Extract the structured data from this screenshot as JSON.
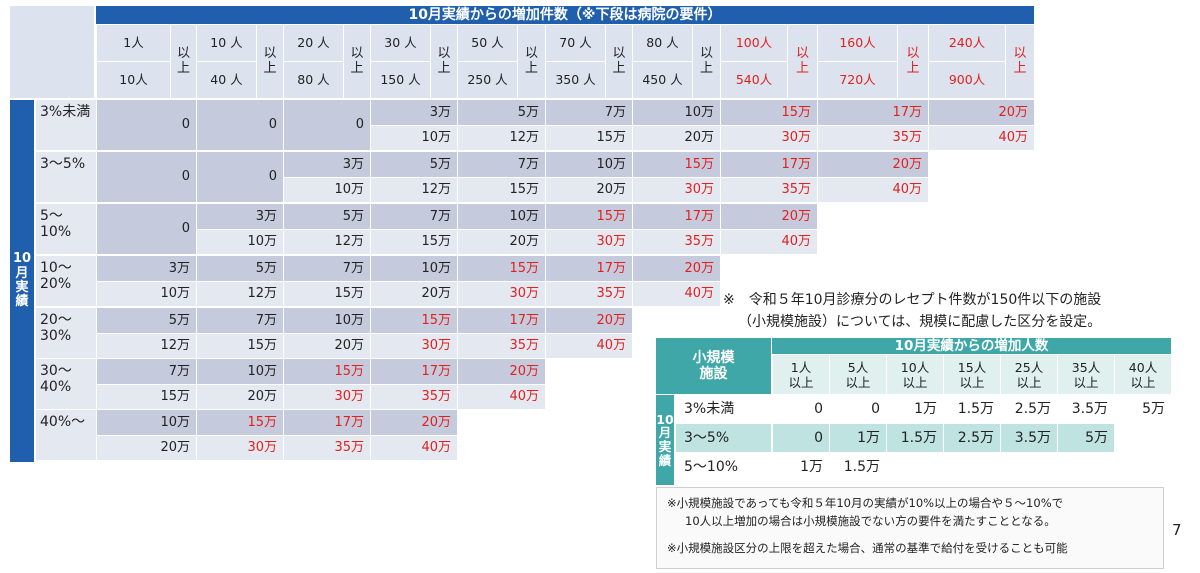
{
  "main_table": {
    "title": "10月実績からの増加件数（※下段は病院の要件）",
    "vertical_label": [
      "10",
      "月",
      "実",
      "績"
    ],
    "columns": [
      {
        "top": "1人",
        "bottom": "10人",
        "suffix": [
          "以",
          "上"
        ]
      },
      {
        "top": "10 人",
        "bottom": "40 人",
        "suffix": [
          "以",
          "上"
        ]
      },
      {
        "top": "20 人",
        "bottom": "80 人",
        "suffix": [
          "以",
          "上"
        ]
      },
      {
        "top": "30 人",
        "bottom": "150 人",
        "suffix": [
          "以",
          "上"
        ]
      },
      {
        "top": "50 人",
        "bottom": "250 人",
        "suffix": [
          "以",
          "上"
        ]
      },
      {
        "top": "70 人",
        "bottom": "350 人",
        "suffix": [
          "以",
          "上"
        ]
      },
      {
        "top": "80 人",
        "bottom": "450 人",
        "suffix": [
          "以",
          "上"
        ]
      },
      {
        "top": "100人",
        "bottom": "540人",
        "suffix": [
          "以",
          "上"
        ]
      },
      {
        "top": "160人",
        "bottom": "720人",
        "suffix": [
          "以",
          "上"
        ]
      },
      {
        "top": "240人",
        "bottom": "900人",
        "suffix": [
          "以",
          "上"
        ]
      }
    ],
    "rows": [
      {
        "label": "3%未満",
        "zeros": [
          "0",
          "0",
          "0"
        ],
        "values": [
          [
            "3万",
            "10万"
          ],
          [
            "5万",
            "12万"
          ],
          [
            "7万",
            "15万"
          ],
          [
            "10万",
            "20万"
          ],
          [
            "15万",
            "30万"
          ],
          [
            "17万",
            "35万"
          ],
          [
            "20万",
            "40万"
          ]
        ]
      },
      {
        "label": "3～5%",
        "zeros": [
          "0",
          "0"
        ],
        "values": [
          [
            "3万",
            "10万"
          ],
          [
            "5万",
            "12万"
          ],
          [
            "7万",
            "15万"
          ],
          [
            "10万",
            "20万"
          ],
          [
            "15万",
            "30万"
          ],
          [
            "17万",
            "35万"
          ],
          [
            "20万",
            "40万"
          ]
        ]
      },
      {
        "label": "5～10%",
        "zeros": [
          "0"
        ],
        "values": [
          [
            "3万",
            "10万"
          ],
          [
            "5万",
            "12万"
          ],
          [
            "7万",
            "15万"
          ],
          [
            "10万",
            "20万"
          ],
          [
            "15万",
            "30万"
          ],
          [
            "17万",
            "35万"
          ],
          [
            "20万",
            "40万"
          ]
        ]
      },
      {
        "label": "10～20%",
        "zeros": [],
        "values": [
          [
            "3万",
            "10万"
          ],
          [
            "5万",
            "12万"
          ],
          [
            "7万",
            "15万"
          ],
          [
            "10万",
            "20万"
          ],
          [
            "15万",
            "30万"
          ],
          [
            "17万",
            "35万"
          ],
          [
            "20万",
            "40万"
          ]
        ]
      },
      {
        "label": "20～30%",
        "zeros": [],
        "values": [
          [
            "5万",
            "12万"
          ],
          [
            "7万",
            "15万"
          ],
          [
            "10万",
            "20万"
          ],
          [
            "15万",
            "30万"
          ],
          [
            "17万",
            "35万"
          ],
          [
            "20万",
            "40万"
          ]
        ]
      },
      {
        "label": "30～40%",
        "zeros": [],
        "values": [
          [
            "7万",
            "15万"
          ],
          [
            "10万",
            "20万"
          ],
          [
            "15万",
            "30万"
          ],
          [
            "17万",
            "35万"
          ],
          [
            "20万",
            "40万"
          ]
        ]
      },
      {
        "label": "40%～",
        "zeros": [],
        "values": [
          [
            "10万",
            "20万"
          ],
          [
            "15万",
            "30万"
          ],
          [
            "17万",
            "35万"
          ],
          [
            "20万",
            "40万"
          ]
        ]
      }
    ]
  },
  "note_text": {
    "line1": "※　令和５年10月診療分のレセプト件数が150件以下の施設",
    "line2": "（小規模施設）については、規模に配慮した区分を設定。"
  },
  "small_table": {
    "corner": [
      "小規模",
      "施設"
    ],
    "title": "10月実績からの増加人数",
    "vertical_label": [
      "10",
      "月",
      "実",
      "績"
    ],
    "columns": [
      [
        "1人",
        "以上"
      ],
      [
        "5人",
        "以上"
      ],
      [
        "10人",
        "以上"
      ],
      [
        "15人",
        "以上"
      ],
      [
        "25人",
        "以上"
      ],
      [
        "35人",
        "以上"
      ],
      [
        "40人",
        "以上"
      ]
    ],
    "rows": [
      {
        "label": "3%未満",
        "values": [
          "0",
          "0",
          "1万",
          "1.5万",
          "2.5万",
          "3.5万",
          "5万"
        ]
      },
      {
        "label": "3～5%",
        "values": [
          "0",
          "1万",
          "1.5万",
          "2.5万",
          "3.5万",
          "5万"
        ]
      },
      {
        "label": "5～10%",
        "values": [
          "1万",
          "1.5万"
        ]
      }
    ]
  },
  "footnotes": {
    "f1": "※小規模施設であっても令和５年10月の実績が10%以上の場合や５～10%で",
    "f1b": "10人以上増加の場合は小規模施設でない方の要件を満たすこととなる。",
    "f2": "※小規模施設区分の上限を超えた場合、通常の基準で給付を受けることも可能"
  },
  "page_number": "7",
  "colors": {
    "blue": "#1f5fae",
    "red": "#e0211d",
    "teal": "#3fa7a7"
  }
}
